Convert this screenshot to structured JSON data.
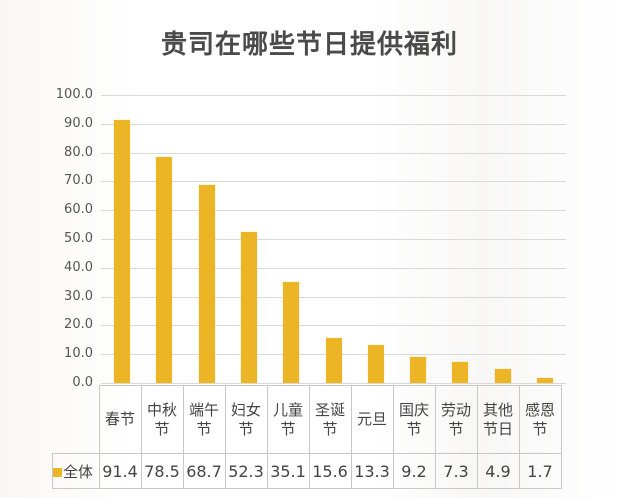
{
  "title": "贵司在哪些节日提供福利",
  "colors": {
    "bar": "#EBB526",
    "grid": "#d9d9d9",
    "text": "#444444"
  },
  "y_axis": {
    "ticks": [
      "100.0",
      "90.0",
      "80.0",
      "70.0",
      "60.0",
      "50.0",
      "40.0",
      "30.0",
      "20.0",
      "10.0",
      "0.0"
    ]
  },
  "table": {
    "categories": [
      "春节",
      "中秋节",
      "端午节",
      "妇女节",
      "儿童节",
      "圣诞节",
      "元旦",
      "国庆节",
      "劳动节",
      "其他节日",
      "感恩节"
    ],
    "category_lines": [
      [
        "春节"
      ],
      [
        "中秋",
        "节"
      ],
      [
        "端午",
        "节"
      ],
      [
        "妇女",
        "节"
      ],
      [
        "儿童",
        "节"
      ],
      [
        "圣诞",
        "节"
      ],
      [
        "元旦"
      ],
      [
        "国庆",
        "节"
      ],
      [
        "劳动",
        "节"
      ],
      [
        "其他",
        "节日"
      ],
      [
        "感恩",
        "节"
      ]
    ],
    "series_label": "全体",
    "values": [
      "91.4",
      "78.5",
      "68.7",
      "52.3",
      "35.1",
      "15.6",
      "13.3",
      "9.2",
      "7.3",
      "4.9",
      "1.7"
    ]
  },
  "chart_data": {
    "type": "bar",
    "title": "贵司在哪些节日提供福利",
    "xlabel": "",
    "ylabel": "",
    "categories": [
      "春节",
      "中秋节",
      "端午节",
      "妇女节",
      "儿童节",
      "圣诞节",
      "元旦",
      "国庆节",
      "劳动节",
      "其他节日",
      "感恩节"
    ],
    "series": [
      {
        "name": "全体",
        "color": "#EBB526",
        "values": [
          91.4,
          78.5,
          68.7,
          52.3,
          35.1,
          15.6,
          13.3,
          9.2,
          7.3,
          4.9,
          1.7
        ]
      }
    ],
    "ylim": [
      0,
      100
    ],
    "yticks": [
      0,
      10,
      20,
      30,
      40,
      50,
      60,
      70,
      80,
      90,
      100
    ],
    "grid": true,
    "legend_position": "data-table",
    "data_table": true
  }
}
